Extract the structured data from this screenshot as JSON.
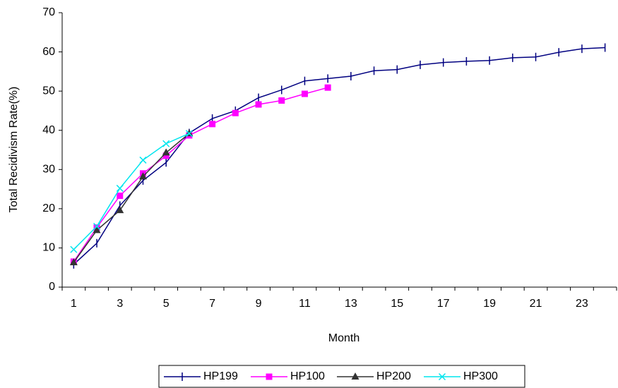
{
  "chart_data": {
    "type": "line",
    "x_label": "Month",
    "y_label": "Total Recidivism Rate(%)",
    "categories": [
      "1",
      null,
      "3",
      null,
      "5",
      null,
      "7",
      null,
      "9",
      null,
      "11",
      null,
      "13",
      null,
      "15",
      null,
      "17",
      null,
      "19",
      null,
      "21",
      null,
      "23",
      null
    ],
    "ylim": [
      0,
      70
    ],
    "yticks": [
      0,
      10,
      20,
      30,
      40,
      50,
      60,
      70
    ],
    "series": [
      {
        "name": "HP199",
        "color": "#000080",
        "marker": "bar",
        "values": [
          5.8,
          11.2,
          20.8,
          27.2,
          31.8,
          39.3,
          43,
          45,
          48.3,
          50.3,
          52.6,
          53.2,
          53.8,
          55.2,
          55.5,
          56.7,
          57.3,
          57.6,
          57.8,
          58.5,
          58.7,
          59.9,
          60.8,
          61.1
        ]
      },
      {
        "name": "HP100",
        "color": "#ff00ff",
        "marker": "square",
        "values": [
          6.5,
          15.2,
          23.3,
          29,
          33.5,
          38.7,
          41.6,
          44.4,
          46.6,
          47.6,
          49.3,
          50.9,
          null,
          null,
          null,
          null,
          null,
          null,
          null,
          null,
          null,
          null,
          null,
          null
        ]
      },
      {
        "name": "HP200",
        "color": "#333333",
        "marker": "triangle",
        "values": [
          6.3,
          14.5,
          19.6,
          28.2,
          34.3,
          39.2,
          null,
          null,
          null,
          null,
          null,
          null,
          null,
          null,
          null,
          null,
          null,
          null,
          null,
          null,
          null,
          null,
          null,
          null
        ]
      },
      {
        "name": "HP300",
        "color": "#00e5ee",
        "marker": "cross",
        "values": [
          9.6,
          15.5,
          25.2,
          32.4,
          36.6,
          39.2,
          null,
          null,
          null,
          null,
          null,
          null,
          null,
          null,
          null,
          null,
          null,
          null,
          null,
          null,
          null,
          null,
          null,
          null
        ]
      }
    ]
  }
}
